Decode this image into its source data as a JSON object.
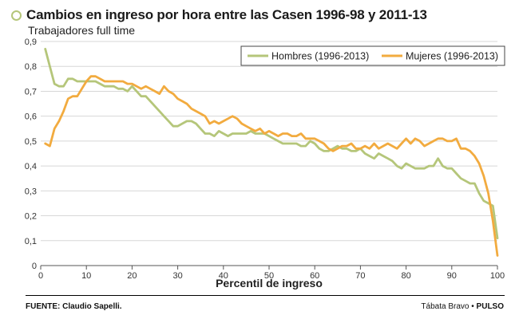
{
  "header": {
    "title": "Cambios en ingreso por hora entre las Casen 1996-98 y 2011-13",
    "subtitle": "Trabajadores full time"
  },
  "footer": {
    "source": "FUENTE: Claudio Sapelli.",
    "author": "Tábata Bravo",
    "separator": "•",
    "outlet": "PULSO"
  },
  "colors": {
    "hombres": "#b5c67a",
    "mujeres": "#f2ab3f",
    "grid": "#d7d7d7",
    "axis": "#555555"
  },
  "chart_data": {
    "type": "line",
    "title": "Cambios en ingreso por hora entre las Casen 1996-98 y 2011-13",
    "subtitle": "Trabajadores full time",
    "xlabel": "Percentil de ingreso",
    "ylabel": "",
    "xlim": [
      0,
      100
    ],
    "ylim": [
      0,
      0.9
    ],
    "xticks": [
      0,
      10,
      20,
      30,
      40,
      50,
      60,
      70,
      80,
      90,
      100
    ],
    "yticks": [
      0,
      0.1,
      0.2,
      0.3,
      0.4,
      0.5,
      0.6,
      0.7,
      0.8,
      0.9
    ],
    "xtick_labels": [
      "0",
      "10",
      "20",
      "30",
      "40",
      "50",
      "60",
      "70",
      "80",
      "90",
      "100"
    ],
    "ytick_labels": [
      "0",
      "0,1",
      "0,2",
      "0,3",
      "0,4",
      "0,5",
      "0,6",
      "0,7",
      "0,8",
      "0,9"
    ],
    "grid": "horizontal",
    "legend_position": "top-right",
    "x": [
      1,
      2,
      3,
      4,
      5,
      6,
      7,
      8,
      9,
      10,
      11,
      12,
      13,
      14,
      15,
      16,
      17,
      18,
      19,
      20,
      21,
      22,
      23,
      24,
      25,
      26,
      27,
      28,
      29,
      30,
      31,
      32,
      33,
      34,
      35,
      36,
      37,
      38,
      39,
      40,
      41,
      42,
      43,
      44,
      45,
      46,
      47,
      48,
      49,
      50,
      51,
      52,
      53,
      54,
      55,
      56,
      57,
      58,
      59,
      60,
      61,
      62,
      63,
      64,
      65,
      66,
      67,
      68,
      69,
      70,
      71,
      72,
      73,
      74,
      75,
      76,
      77,
      78,
      79,
      80,
      81,
      82,
      83,
      84,
      85,
      86,
      87,
      88,
      89,
      90,
      91,
      92,
      93,
      94,
      95,
      96,
      97,
      98,
      99,
      100
    ],
    "series": [
      {
        "name": "Hombres (1996-2013)",
        "values": [
          0.87,
          0.8,
          0.73,
          0.72,
          0.72,
          0.75,
          0.75,
          0.74,
          0.74,
          0.74,
          0.74,
          0.74,
          0.73,
          0.72,
          0.72,
          0.72,
          0.71,
          0.71,
          0.7,
          0.72,
          0.7,
          0.68,
          0.68,
          0.66,
          0.64,
          0.62,
          0.6,
          0.58,
          0.56,
          0.56,
          0.57,
          0.58,
          0.58,
          0.57,
          0.55,
          0.53,
          0.53,
          0.52,
          0.54,
          0.53,
          0.52,
          0.53,
          0.53,
          0.53,
          0.53,
          0.54,
          0.53,
          0.53,
          0.53,
          0.52,
          0.51,
          0.5,
          0.49,
          0.49,
          0.49,
          0.49,
          0.48,
          0.48,
          0.5,
          0.49,
          0.47,
          0.46,
          0.46,
          0.47,
          0.48,
          0.47,
          0.47,
          0.46,
          0.46,
          0.47,
          0.45,
          0.44,
          0.43,
          0.45,
          0.44,
          0.43,
          0.42,
          0.4,
          0.39,
          0.41,
          0.4,
          0.39,
          0.39,
          0.39,
          0.4,
          0.4,
          0.43,
          0.4,
          0.39,
          0.39,
          0.37,
          0.35,
          0.34,
          0.33,
          0.33,
          0.29,
          0.26,
          0.25,
          0.24,
          0.11
        ]
      },
      {
        "name": "Mujeres (1996-2013)",
        "values": [
          0.49,
          0.48,
          0.55,
          0.58,
          0.62,
          0.67,
          0.68,
          0.68,
          0.71,
          0.74,
          0.76,
          0.76,
          0.75,
          0.74,
          0.74,
          0.74,
          0.74,
          0.74,
          0.73,
          0.73,
          0.72,
          0.71,
          0.72,
          0.71,
          0.7,
          0.69,
          0.72,
          0.7,
          0.69,
          0.67,
          0.66,
          0.65,
          0.63,
          0.62,
          0.61,
          0.6,
          0.57,
          0.58,
          0.57,
          0.58,
          0.59,
          0.6,
          0.59,
          0.57,
          0.56,
          0.55,
          0.54,
          0.55,
          0.53,
          0.54,
          0.53,
          0.52,
          0.53,
          0.53,
          0.52,
          0.52,
          0.53,
          0.51,
          0.51,
          0.51,
          0.5,
          0.49,
          0.47,
          0.46,
          0.47,
          0.48,
          0.48,
          0.49,
          0.47,
          0.47,
          0.48,
          0.47,
          0.49,
          0.47,
          0.48,
          0.49,
          0.48,
          0.47,
          0.49,
          0.51,
          0.49,
          0.51,
          0.5,
          0.48,
          0.49,
          0.5,
          0.51,
          0.51,
          0.5,
          0.5,
          0.51,
          0.47,
          0.47,
          0.46,
          0.44,
          0.41,
          0.36,
          0.29,
          0.18,
          0.04
        ]
      }
    ]
  }
}
